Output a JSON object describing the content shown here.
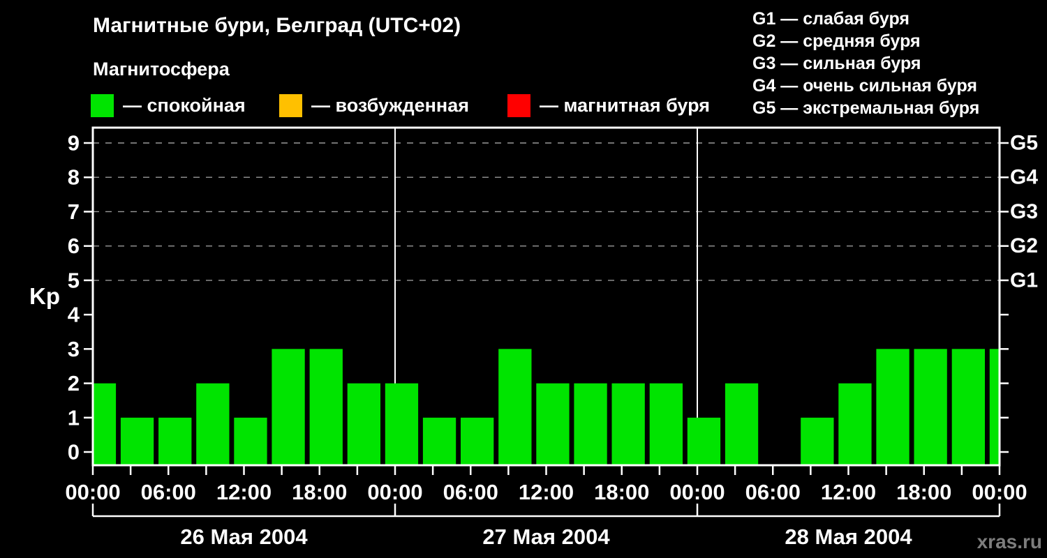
{
  "title": "Магнитные бури, Белград (UTC+02)",
  "subtitle": "Магнитосфера",
  "legend": {
    "items": [
      {
        "name": "quiet",
        "color": "#00e400",
        "label": "— спокойная"
      },
      {
        "name": "excited",
        "color": "#ffc000",
        "label": "— возбужденная"
      },
      {
        "name": "storm",
        "color": "#ff0000",
        "label": "— магнитная буря"
      }
    ]
  },
  "storm_scale_legend": {
    "lines": [
      "G1 — слабая буря",
      "G2 — средняя буря",
      "G3 — сильная буря",
      "G4 — очень сильная буря",
      "G5 — экстремальная буря"
    ]
  },
  "watermark": "xras.ru",
  "chart_data": {
    "type": "bar",
    "title": "Магнитные бури, Белград (UTC+02)",
    "ylabel": "Kp",
    "ylim": [
      0,
      9
    ],
    "y_ticks": [
      0,
      1,
      2,
      3,
      4,
      5,
      6,
      7,
      8,
      9
    ],
    "grid_levels": [
      5,
      6,
      7,
      8,
      9
    ],
    "grid_style": "dashed",
    "legend_position": "top",
    "right_axis_labels": [
      {
        "label": "G1",
        "value": 5
      },
      {
        "label": "G2",
        "value": 6
      },
      {
        "label": "G3",
        "value": 7
      },
      {
        "label": "G4",
        "value": 8
      },
      {
        "label": "G5",
        "value": 9
      }
    ],
    "interval_hours": 3,
    "x_label_every_hours": 6,
    "x_label_cycle": [
      "00:00",
      "06:00",
      "12:00",
      "18:00"
    ],
    "days": [
      {
        "date": "26 Мая 2004",
        "kp": [
          2,
          1,
          1,
          2,
          1,
          3,
          3,
          2
        ]
      },
      {
        "date": "27 Мая 2004",
        "kp": [
          2,
          1,
          1,
          3,
          2,
          2,
          2,
          2
        ]
      },
      {
        "date": "28 Мая 2004",
        "kp": [
          1,
          2,
          0,
          1,
          2,
          3,
          3,
          3
        ]
      }
    ],
    "next_day_partial_kp": 3,
    "colors": {
      "background": "#000000",
      "bar_quiet": "#00e400",
      "bar_excited": "#ffc000",
      "bar_storm": "#ff0000",
      "axis": "#ffffff",
      "grid": "#999999",
      "day_boundary": "#ffffff"
    }
  }
}
